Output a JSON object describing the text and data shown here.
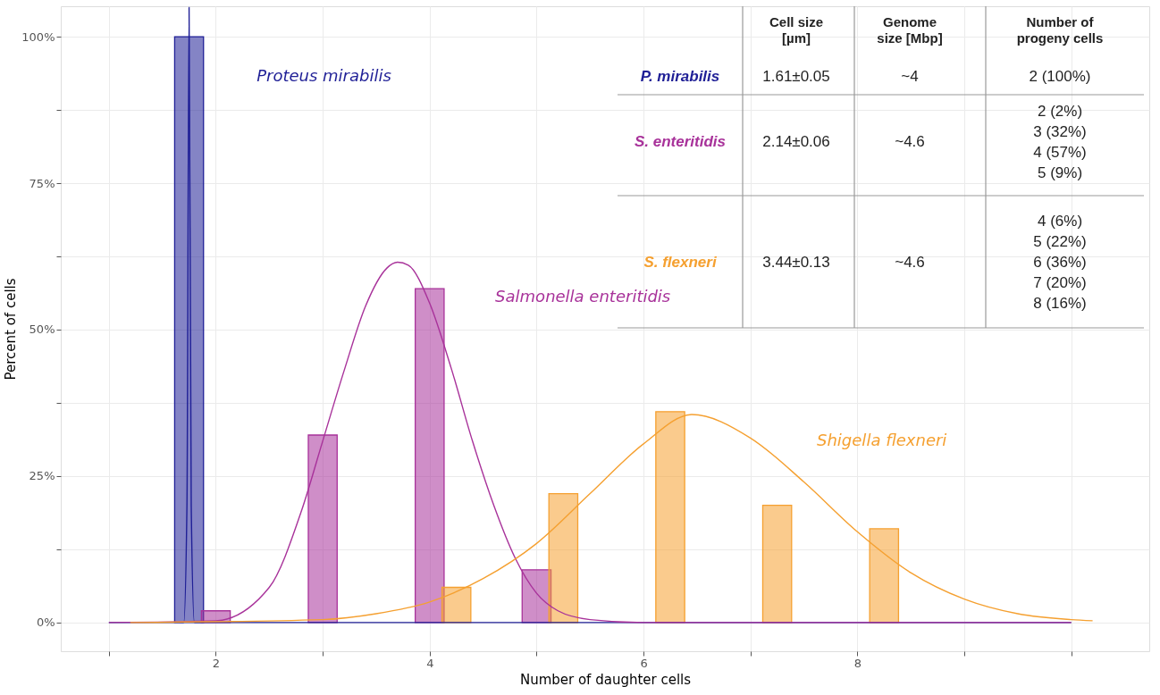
{
  "chart_data": {
    "type": "bar",
    "xlabel": "Number of daughter cells",
    "ylabel": "Percent of cells",
    "xlim": [
      0.55,
      10.73
    ],
    "ylim": [
      -4.9,
      105.2
    ],
    "xticks": [
      {
        "value": 1,
        "label": null
      },
      2,
      {
        "value": 3,
        "label": null
      },
      4,
      {
        "value": 5,
        "label": null
      },
      6,
      {
        "value": 7,
        "label": null
      },
      8,
      {
        "value": 9,
        "label": null
      },
      {
        "value": 10,
        "label": null
      }
    ],
    "yticks": [
      {
        "value": 0,
        "label": "0%"
      },
      {
        "value": 12.5,
        "label": null
      },
      {
        "value": 25,
        "label": "25%"
      },
      {
        "value": 37.5,
        "label": null
      },
      {
        "value": 50,
        "label": "50%"
      },
      {
        "value": 62.5,
        "label": null
      },
      {
        "value": 75,
        "label": "75%"
      },
      {
        "value": 87.5,
        "label": null
      },
      {
        "value": 100,
        "label": "100%"
      }
    ],
    "grid": true,
    "series": [
      {
        "color": "#1f1f96",
        "x": [
          1.75
        ],
        "values": [
          100
        ]
      },
      {
        "color": "#a8329a",
        "x": [
          2,
          3,
          4,
          5
        ],
        "values": [
          2,
          32,
          57,
          9
        ]
      },
      {
        "color": "#f5a030",
        "x": [
          4.25,
          5.25,
          6.25,
          7.25,
          8.25
        ],
        "values": [
          6,
          22,
          36,
          20,
          16
        ]
      },
      {
        "type": "line",
        "color": "#1f1f96",
        "x": [
          1.0,
          1.7,
          1.73,
          1.75,
          1.77,
          1.8,
          10.0
        ],
        "values": [
          0,
          0,
          20,
          105,
          20,
          0,
          0
        ]
      },
      {
        "type": "line",
        "color": "#a8329a",
        "x": [
          1.0,
          2.0,
          2.5,
          2.8,
          3.0,
          3.2,
          3.4,
          3.6,
          3.7,
          3.8,
          4.0,
          4.2,
          4.4,
          4.6,
          4.8,
          5.0,
          5.2,
          5.5,
          6.0,
          10.0
        ],
        "values": [
          0,
          0.3,
          6,
          19,
          31,
          43,
          54,
          60.5,
          61.5,
          61,
          54.5,
          43.5,
          31,
          20,
          11,
          5,
          2,
          0.5,
          0,
          0
        ]
      },
      {
        "type": "line",
        "color": "#f5a030",
        "x": [
          1.2,
          3.0,
          3.5,
          4.0,
          4.5,
          5.0,
          5.5,
          6.0,
          6.45,
          7.0,
          7.5,
          8.0,
          8.5,
          9.0,
          9.5,
          10.0,
          10.2
        ],
        "values": [
          0,
          0.5,
          1.5,
          3.5,
          7.5,
          13.5,
          22,
          30.5,
          35.5,
          31.5,
          24,
          15.5,
          8.5,
          4,
          1.5,
          0.5,
          0.3
        ]
      }
    ],
    "annotations": [
      "Proteus mirabilis",
      "Salmonella enteritidis",
      "Shigella flexneri",
      "Cell size\n[µm]",
      "Genome\nsize [Mbp]",
      "Number of\nprogeny cells",
      "P. mirabilis",
      "1.61±0.05",
      "~4",
      "2   (100%)",
      "S. enteritidis",
      "2.14±0.06",
      "~4.6",
      "2     (2%)\n3   (32%)\n4   (57%)\n5     (9%)",
      "S. flexneri",
      "3.44±0.13",
      "~4.6",
      "4     (6%)\n5   (22%)\n6   (36%)\n7   (20%)\n8   (16%)"
    ]
  }
}
